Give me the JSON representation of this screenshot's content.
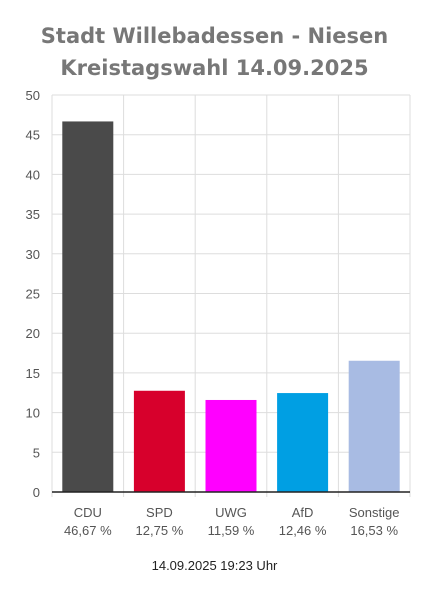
{
  "header": {
    "line1": "Stadt Willebadessen - Niesen",
    "line2": "Kreistagswahl 14.09.2025"
  },
  "footer": {
    "timestamp": "14.09.2025 19:23 Uhr"
  },
  "chart_data": {
    "type": "bar",
    "title": "Stadt Willebadessen - Niesen Kreistagswahl 14.09.2025",
    "categories": [
      "CDU",
      "SPD",
      "UWG",
      "AfD",
      "Sonstige"
    ],
    "values": [
      46.67,
      12.75,
      11.59,
      12.46,
      16.53
    ],
    "value_labels": [
      "46,67 %",
      "12,75 %",
      "11,59 %",
      "12,46 %",
      "16,53 %"
    ],
    "colors": [
      "#4a4a4a",
      "#d7002c",
      "#ff00ff",
      "#009fe3",
      "#a8bbe3"
    ],
    "ylim": [
      0,
      50
    ],
    "yticks": [
      0,
      5,
      10,
      15,
      20,
      25,
      30,
      35,
      40,
      45,
      50
    ],
    "grid": true,
    "legend": "none"
  }
}
